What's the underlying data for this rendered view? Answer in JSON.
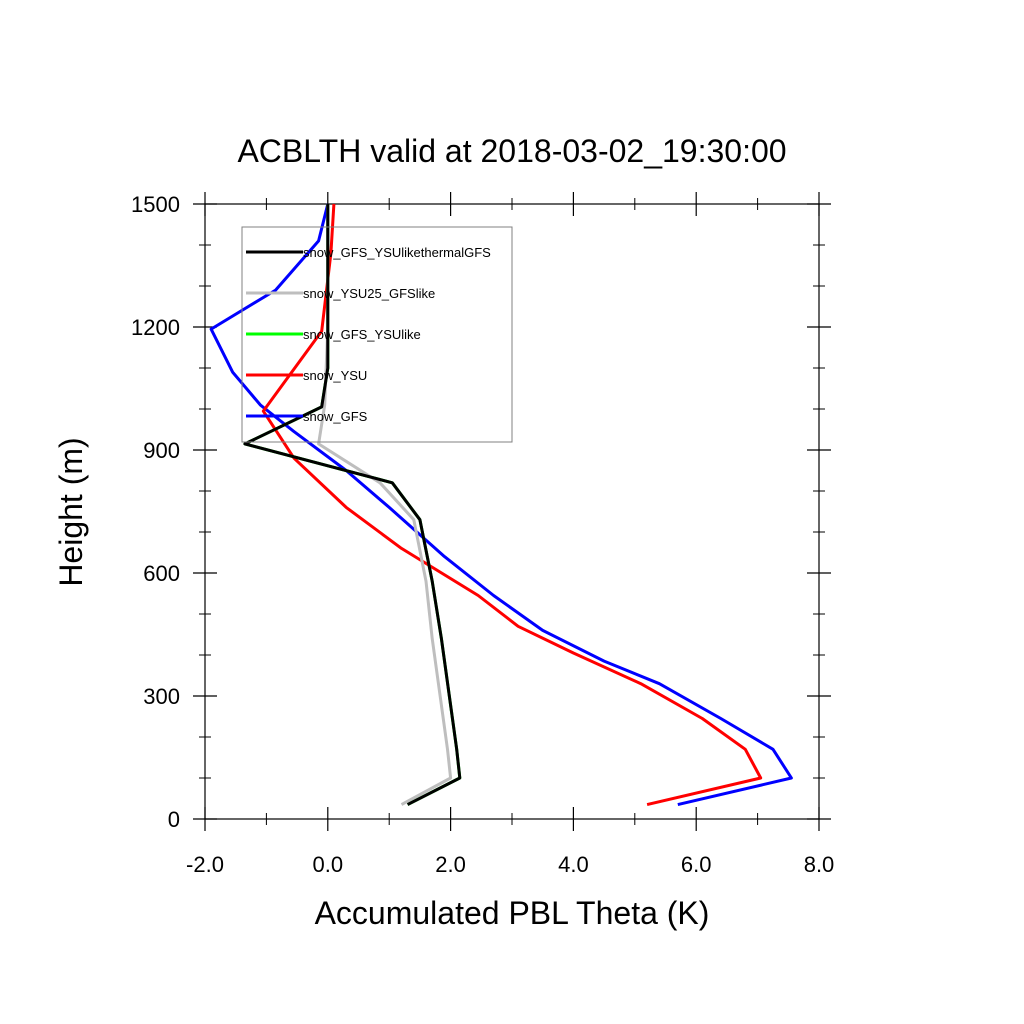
{
  "chart_data": {
    "type": "line",
    "title": "ACBLTH valid at 2018-03-02_19:30:00",
    "xlabel": "Accumulated PBL Theta (K)",
    "ylabel": "Height (m)",
    "xlim": [
      -2.0,
      8.0
    ],
    "ylim": [
      0,
      1500
    ],
    "x_ticks": [
      -2.0,
      0.0,
      2.0,
      4.0,
      6.0,
      8.0
    ],
    "x_tick_labels": [
      "-2.0",
      "0.0",
      "2.0",
      "4.0",
      "6.0",
      "8.0"
    ],
    "y_ticks": [
      0,
      300,
      600,
      900,
      1200,
      1500
    ],
    "y_tick_labels": [
      "0",
      "300",
      "600",
      "900",
      "1200",
      "1500"
    ],
    "grid": false,
    "legend_position": "top-left",
    "series": [
      {
        "name": "snow_GFS",
        "color": "#0000ff",
        "points": [
          [
            5.7,
            35
          ],
          [
            7.55,
            100
          ],
          [
            7.25,
            170
          ],
          [
            6.4,
            245
          ],
          [
            5.4,
            330
          ],
          [
            4.5,
            385
          ],
          [
            3.5,
            460
          ],
          [
            2.7,
            545
          ],
          [
            1.9,
            640
          ],
          [
            1.0,
            760
          ],
          [
            0.3,
            850
          ],
          [
            -0.55,
            945
          ],
          [
            -1.1,
            1010
          ],
          [
            -1.55,
            1090
          ],
          [
            -1.9,
            1195
          ],
          [
            -0.85,
            1290
          ],
          [
            -0.15,
            1410
          ],
          [
            0.0,
            1500
          ]
        ]
      },
      {
        "name": "snow_YSU",
        "color": "#ff0000",
        "points": [
          [
            5.2,
            35
          ],
          [
            7.05,
            100
          ],
          [
            6.8,
            170
          ],
          [
            6.1,
            245
          ],
          [
            5.1,
            330
          ],
          [
            4.0,
            405
          ],
          [
            3.1,
            470
          ],
          [
            2.45,
            545
          ],
          [
            1.2,
            660
          ],
          [
            0.3,
            760
          ],
          [
            -0.55,
            880
          ],
          [
            -1.05,
            995
          ],
          [
            -0.1,
            1190
          ],
          [
            0.05,
            1380
          ],
          [
            0.1,
            1500
          ]
        ]
      },
      {
        "name": "snow_GFS_YSUlike",
        "color": "#00ff00",
        "points": [
          [
            1.3,
            35
          ],
          [
            2.15,
            100
          ],
          [
            2.1,
            170
          ],
          [
            1.85,
            440
          ],
          [
            1.7,
            580
          ],
          [
            1.5,
            730
          ],
          [
            1.05,
            820
          ],
          [
            -1.35,
            915
          ],
          [
            -0.1,
            1005
          ],
          [
            0.0,
            1100
          ],
          [
            0.0,
            1300
          ],
          [
            0.0,
            1500
          ]
        ]
      },
      {
        "name": "snow_YSU25_GFSlike",
        "color": "#bebebe",
        "points": [
          [
            1.2,
            35
          ],
          [
            2.0,
            100
          ],
          [
            1.95,
            170
          ],
          [
            1.7,
            440
          ],
          [
            1.6,
            580
          ],
          [
            1.4,
            730
          ],
          [
            0.85,
            820
          ],
          [
            -0.15,
            915
          ],
          [
            -0.05,
            1010
          ],
          [
            0.0,
            1200
          ],
          [
            0.0,
            1500
          ]
        ]
      },
      {
        "name": "snow_GFS_YSUlikethermalGFS",
        "color": "#000000",
        "points": [
          [
            1.3,
            35
          ],
          [
            2.15,
            100
          ],
          [
            2.1,
            170
          ],
          [
            1.85,
            440
          ],
          [
            1.7,
            580
          ],
          [
            1.5,
            730
          ],
          [
            1.05,
            820
          ],
          [
            -1.35,
            915
          ],
          [
            -0.1,
            1005
          ],
          [
            0.0,
            1100
          ],
          [
            0.0,
            1300
          ],
          [
            0.0,
            1500
          ]
        ]
      }
    ],
    "legend_order": [
      "snow_GFS_YSUlikethermalGFS",
      "snow_YSU25_GFSlike",
      "snow_GFS_YSUlike",
      "snow_YSU",
      "snow_GFS"
    ]
  }
}
